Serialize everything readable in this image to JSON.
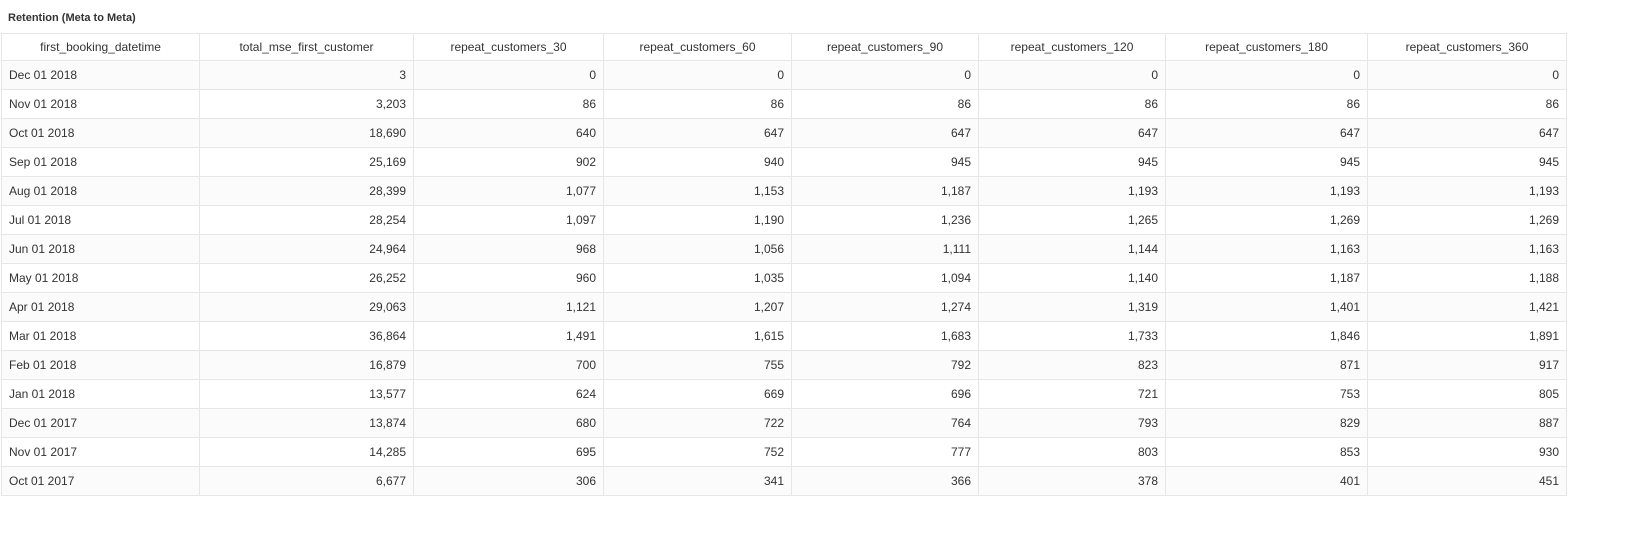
{
  "panel": {
    "title": "Retention (Meta to Meta)"
  },
  "table": {
    "columns": [
      "first_booking_datetime",
      "total_mse_first_customer",
      "repeat_customers_30",
      "repeat_customers_60",
      "repeat_customers_90",
      "repeat_customers_120",
      "repeat_customers_180",
      "repeat_customers_360"
    ],
    "rows": [
      [
        "Dec 01 2018",
        "3",
        "0",
        "0",
        "0",
        "0",
        "0",
        "0"
      ],
      [
        "Nov 01 2018",
        "3,203",
        "86",
        "86",
        "86",
        "86",
        "86",
        "86"
      ],
      [
        "Oct 01 2018",
        "18,690",
        "640",
        "647",
        "647",
        "647",
        "647",
        "647"
      ],
      [
        "Sep 01 2018",
        "25,169",
        "902",
        "940",
        "945",
        "945",
        "945",
        "945"
      ],
      [
        "Aug 01 2018",
        "28,399",
        "1,077",
        "1,153",
        "1,187",
        "1,193",
        "1,193",
        "1,193"
      ],
      [
        "Jul 01 2018",
        "28,254",
        "1,097",
        "1,190",
        "1,236",
        "1,265",
        "1,269",
        "1,269"
      ],
      [
        "Jun 01 2018",
        "24,964",
        "968",
        "1,056",
        "1,111",
        "1,144",
        "1,163",
        "1,163"
      ],
      [
        "May 01 2018",
        "26,252",
        "960",
        "1,035",
        "1,094",
        "1,140",
        "1,187",
        "1,188"
      ],
      [
        "Apr 01 2018",
        "29,063",
        "1,121",
        "1,207",
        "1,274",
        "1,319",
        "1,401",
        "1,421"
      ],
      [
        "Mar 01 2018",
        "36,864",
        "1,491",
        "1,615",
        "1,683",
        "1,733",
        "1,846",
        "1,891"
      ],
      [
        "Feb 01 2018",
        "16,879",
        "700",
        "755",
        "792",
        "823",
        "871",
        "917"
      ],
      [
        "Jan 01 2018",
        "13,577",
        "624",
        "669",
        "696",
        "721",
        "753",
        "805"
      ],
      [
        "Dec 01 2017",
        "13,874",
        "680",
        "722",
        "764",
        "793",
        "829",
        "887"
      ],
      [
        "Nov 01 2017",
        "14,285",
        "695",
        "752",
        "777",
        "803",
        "853",
        "930"
      ],
      [
        "Oct 01 2017",
        "6,677",
        "306",
        "341",
        "366",
        "378",
        "401",
        "451"
      ]
    ]
  },
  "colors": {
    "border": "#e6e6e6",
    "text": "#333333",
    "stripe": "#fbfbfb"
  }
}
